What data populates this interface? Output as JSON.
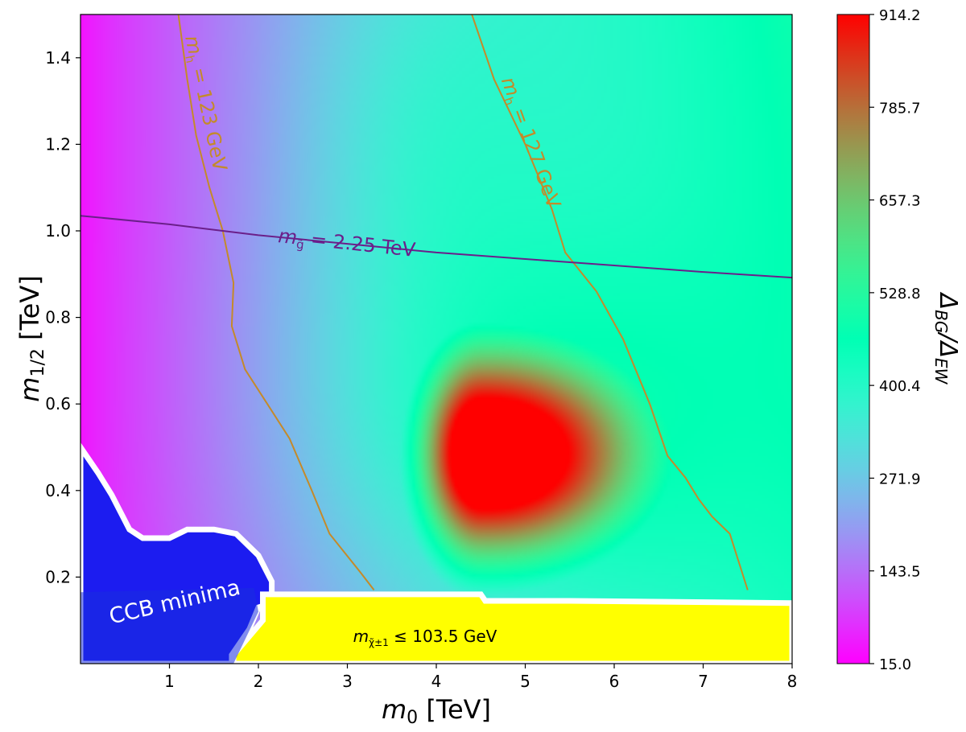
{
  "chart_data": {
    "type": "heatmap",
    "xlabel_main": "m",
    "xlabel_sub": "0",
    "xlabel_unit": " [TeV]",
    "ylabel_main": "m",
    "ylabel_sub": "1/2",
    "ylabel_unit": " [TeV]",
    "xlim": [
      0,
      8
    ],
    "ylim": [
      0,
      1.5
    ],
    "x_ticks": [
      1,
      2,
      3,
      4,
      5,
      6,
      7,
      8
    ],
    "y_ticks": [
      0.2,
      0.4,
      0.6,
      0.8,
      1.0,
      1.2,
      1.4
    ],
    "y_tick_labels": [
      "0.2",
      "0.4",
      "0.6",
      "0.8",
      "1.0",
      "1.2",
      "1.4"
    ],
    "colorbar": {
      "label_main": "Δ",
      "label_sub1": "BG",
      "label_mid": "/Δ",
      "label_sub2": "EW",
      "min": 15.0,
      "max": 914.2,
      "ticks": [
        "15.0",
        "143.5",
        "271.9",
        "400.4",
        "528.8",
        "657.3",
        "785.7",
        "914.2"
      ],
      "colormap": "rainbow"
    },
    "peak": {
      "m0": 4.5,
      "m12": 0.48,
      "value": 914.2
    },
    "contours": [
      {
        "label_main": "m",
        "label_sub": "h",
        "label_rest": " = 123 GeV",
        "color": "#c48a2a",
        "points": [
          [
            3.3,
            0.17
          ],
          [
            3.15,
            0.21
          ],
          [
            2.8,
            0.3
          ],
          [
            2.6,
            0.4
          ],
          [
            2.35,
            0.52
          ],
          [
            2.1,
            0.6
          ],
          [
            1.85,
            0.68
          ],
          [
            1.7,
            0.78
          ],
          [
            1.72,
            0.88
          ],
          [
            1.6,
            1.0
          ],
          [
            1.45,
            1.1
          ],
          [
            1.3,
            1.22
          ],
          [
            1.2,
            1.35
          ],
          [
            1.1,
            1.5
          ]
        ]
      },
      {
        "label_main": "m",
        "label_sub": "h",
        "label_rest": " = 127 GeV",
        "color": "#c48a2a",
        "points": [
          [
            7.5,
            0.17
          ],
          [
            7.3,
            0.3
          ],
          [
            7.1,
            0.34
          ],
          [
            6.95,
            0.38
          ],
          [
            6.8,
            0.43
          ],
          [
            6.6,
            0.48
          ],
          [
            6.4,
            0.6
          ],
          [
            6.1,
            0.75
          ],
          [
            5.8,
            0.86
          ],
          [
            5.45,
            0.95
          ],
          [
            5.3,
            1.05
          ],
          [
            5.0,
            1.2
          ],
          [
            4.65,
            1.35
          ],
          [
            4.4,
            1.5
          ]
        ]
      },
      {
        "label_main": "m",
        "label_sub": "g̃",
        "label_rest": " = 2.25 TeV",
        "color": "#6b1f8a",
        "points": [
          [
            0.0,
            1.035
          ],
          [
            1.0,
            1.015
          ],
          [
            2.0,
            0.99
          ],
          [
            3.0,
            0.97
          ],
          [
            4.0,
            0.95
          ],
          [
            5.0,
            0.935
          ],
          [
            6.0,
            0.92
          ],
          [
            7.0,
            0.905
          ],
          [
            8.0,
            0.892
          ]
        ]
      }
    ],
    "excluded_regions": [
      {
        "label": "CCB minima",
        "color": "#1c1cf0",
        "boundary": [
          [
            0.0,
            0.5
          ],
          [
            0.2,
            0.44
          ],
          [
            0.35,
            0.39
          ],
          [
            0.55,
            0.31
          ],
          [
            0.7,
            0.29
          ],
          [
            1.0,
            0.29
          ],
          [
            1.2,
            0.31
          ],
          [
            1.5,
            0.31
          ],
          [
            1.75,
            0.3
          ],
          [
            2.0,
            0.25
          ],
          [
            2.15,
            0.19
          ],
          [
            2.15,
            0.16
          ],
          [
            2.15,
            0.14
          ],
          [
            2.0,
            0.13
          ],
          [
            1.9,
            0.08
          ],
          [
            1.7,
            0.02
          ],
          [
            1.7,
            0.0
          ],
          [
            0.0,
            0.0
          ]
        ]
      },
      {
        "label_main": "m",
        "label_sub": "χ̃±1",
        "label_rest": " ≤ 103.5 GeV",
        "color": "#ffff00",
        "boundary": [
          [
            2.05,
            0.16
          ],
          [
            3.5,
            0.16
          ],
          [
            4.5,
            0.16
          ],
          [
            4.55,
            0.145
          ],
          [
            5.5,
            0.145
          ],
          [
            8.0,
            0.14
          ],
          [
            8.0,
            0.0
          ],
          [
            1.72,
            0.0
          ],
          [
            1.72,
            0.02
          ],
          [
            2.05,
            0.1
          ]
        ]
      }
    ]
  }
}
